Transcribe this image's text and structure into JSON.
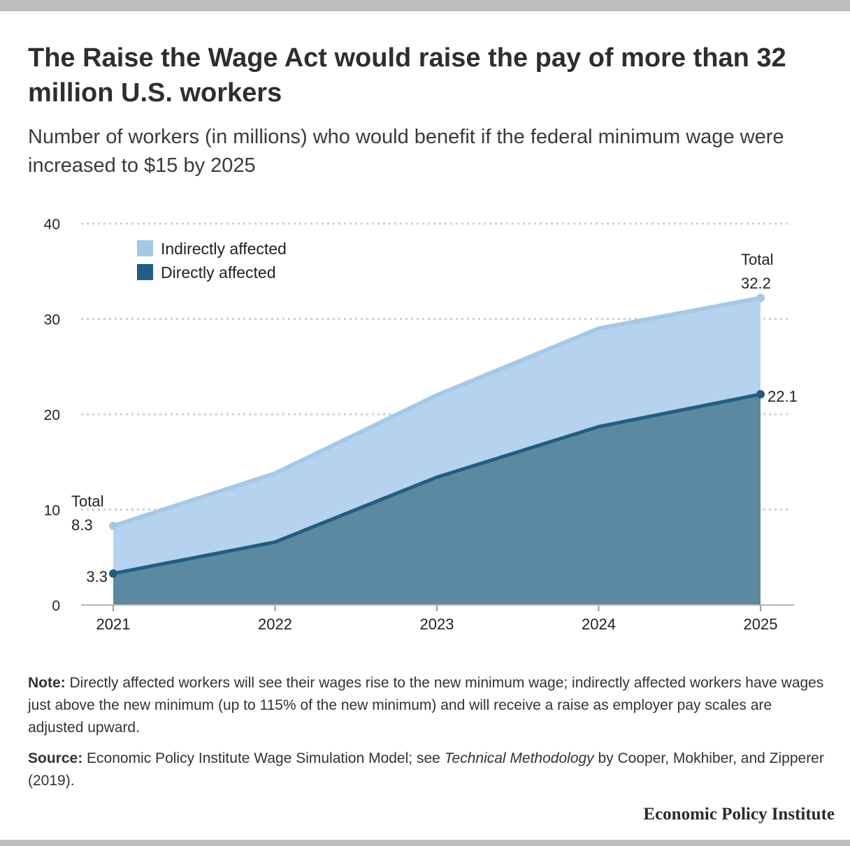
{
  "title": "The Raise the Wage Act would raise the pay of more than 32 million U.S. workers",
  "subtitle": "Number of workers (in millions) who would benefit if the federal minimum wage were increased to $15 by 2025",
  "chart_data": {
    "type": "area",
    "x": [
      "2021",
      "2022",
      "2023",
      "2024",
      "2025"
    ],
    "ylim": [
      0,
      40
    ],
    "yticks": [
      0,
      10,
      20,
      30,
      40
    ],
    "grid": true,
    "legend_position": "top-left",
    "series": [
      {
        "name": "Indirectly affected",
        "kind": "total",
        "values": [
          8.3,
          13.8,
          22.0,
          29.0,
          32.2
        ],
        "color": "#a4c8e8",
        "fill": "#b5d3ee"
      },
      {
        "name": "Directly affected",
        "kind": "direct",
        "values": [
          3.3,
          6.6,
          13.4,
          18.7,
          22.1
        ],
        "color": "#225d83",
        "fill": "#5b89a2"
      }
    ],
    "annotations": {
      "start_total_label": "Total",
      "start_total_value": "8.3",
      "start_direct_value": "3.3",
      "end_total_label": "Total",
      "end_total_value": "32.2",
      "end_direct_value": "22.1"
    }
  },
  "note": {
    "lead": "Note:",
    "text": " Directly affected workers will see their wages rise to the new minimum wage; indirectly affected workers have wages just above the new minimum (up to 115% of the new minimum) and will receive a raise as employer pay scales are adjusted upward."
  },
  "source": {
    "lead": "Source:",
    "pre": " Economic Policy Institute Wage Simulation Model; see ",
    "italic": "Technical Methodology",
    "post": " by Cooper, Mokhiber, and Zipperer (2019)."
  },
  "brand": "Economic Policy Institute"
}
